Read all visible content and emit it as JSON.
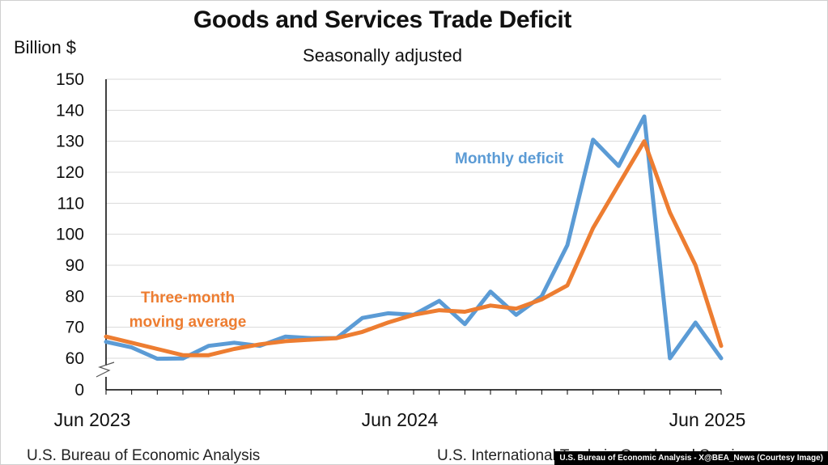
{
  "colors": {
    "monthly": "#5B9BD5",
    "average": "#ED7D31",
    "grid": "#d9d9d9",
    "axis": "#000000"
  },
  "chart_data": {
    "type": "line",
    "title": "Goods and Services Trade Deficit",
    "subtitle": "Seasonally adjusted",
    "ylabel": "Billion $",
    "ylim": [
      0,
      150
    ],
    "y_axis_break": true,
    "yticks": [
      "150",
      "140",
      "130",
      "120",
      "110",
      "100",
      "90",
      "80",
      "70",
      "60",
      "0"
    ],
    "x_tick_labels": [
      "Jun 2023",
      "Jun 2024",
      "Jun 2025"
    ],
    "x": [
      "Jun 2023",
      "Jul 2023",
      "Aug 2023",
      "Sep 2023",
      "Oct 2023",
      "Nov 2023",
      "Dec 2023",
      "Jan 2024",
      "Feb 2024",
      "Mar 2024",
      "Apr 2024",
      "May 2024",
      "Jun 2024",
      "Jul 2024",
      "Aug 2024",
      "Sep 2024",
      "Oct 2024",
      "Nov 2024",
      "Dec 2024",
      "Jan 2025",
      "Feb 2025",
      "Mar 2025",
      "Apr 2025",
      "May 2025",
      "Jun 2025"
    ],
    "grid": true,
    "series": [
      {
        "name": "Monthly deficit",
        "values": [
          65.3,
          63.5,
          59.0,
          59.5,
          64.0,
          65.0,
          64.0,
          67.0,
          66.5,
          66.5,
          73.0,
          74.5,
          74.0,
          78.5,
          71.0,
          81.5,
          74.0,
          80.0,
          96.5,
          130.5,
          122.0,
          138.0,
          60.0,
          71.5,
          60.0
        ]
      },
      {
        "name": "Three-month moving average",
        "values": [
          67.0,
          65.0,
          63.0,
          61.0,
          61.0,
          63.0,
          64.5,
          65.5,
          66.0,
          66.5,
          68.5,
          71.5,
          74.0,
          75.5,
          75.0,
          77.0,
          76.0,
          79.0,
          83.5,
          102.0,
          116.0,
          130.0,
          107.0,
          90.0,
          64.0
        ]
      }
    ],
    "annotations": [
      "Monthly deficit",
      "Three-month",
      "moving average"
    ]
  },
  "footer": {
    "source_left": "U.S. Bureau of Economic Analysis",
    "source_right": "U.S. International Trade in Goods and Services",
    "credit": "U.S. Bureau of Economic Analysis - X@BEA_News (Courtesy Image)"
  }
}
